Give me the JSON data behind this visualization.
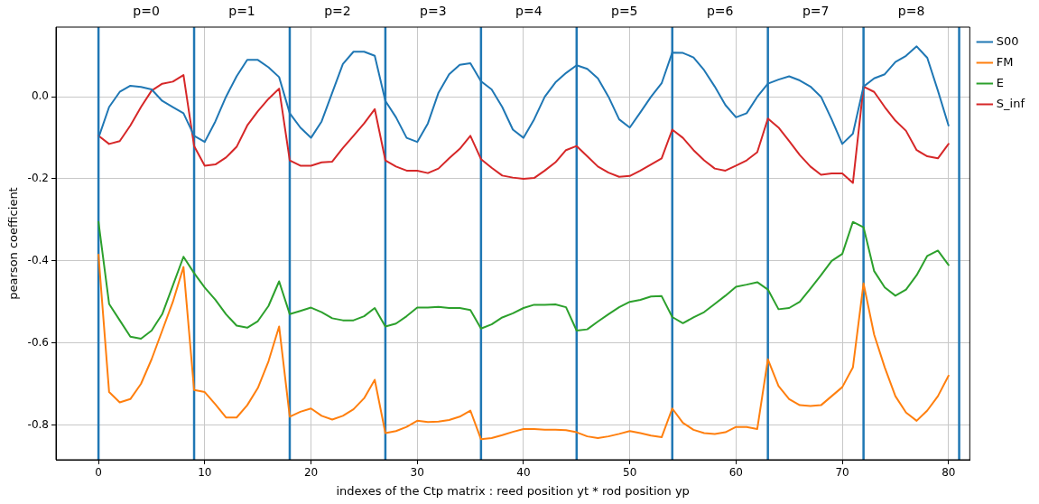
{
  "chart_data": {
    "type": "line",
    "xlabel": "indexes of the Ctp matrix : reed position yt * rod position yp",
    "ylabel": "pearson coefficient",
    "x": [
      0,
      1,
      2,
      3,
      4,
      5,
      6,
      7,
      8,
      9,
      10,
      11,
      12,
      13,
      14,
      15,
      16,
      17,
      18,
      19,
      20,
      21,
      22,
      23,
      24,
      25,
      26,
      27,
      28,
      29,
      30,
      31,
      32,
      33,
      34,
      35,
      36,
      37,
      38,
      39,
      40,
      41,
      42,
      43,
      44,
      45,
      46,
      47,
      48,
      49,
      50,
      51,
      52,
      53,
      54,
      55,
      56,
      57,
      58,
      59,
      60,
      61,
      62,
      63,
      64,
      65,
      66,
      67,
      68,
      69,
      70,
      71,
      72,
      73,
      74,
      75,
      76,
      77,
      78,
      79,
      80
    ],
    "series": [
      {
        "name": "S00",
        "color": "#1f77b4",
        "values": [
          -0.1,
          -0.025,
          0.012,
          0.027,
          0.024,
          0.018,
          -0.01,
          -0.025,
          -0.04,
          -0.095,
          -0.11,
          -0.06,
          0.0,
          0.05,
          0.09,
          0.09,
          0.072,
          0.048,
          -0.04,
          -0.075,
          -0.1,
          -0.06,
          0.01,
          0.08,
          0.11,
          0.11,
          0.1,
          -0.01,
          -0.05,
          -0.1,
          -0.11,
          -0.065,
          0.01,
          0.055,
          0.078,
          0.082,
          0.038,
          0.018,
          -0.025,
          -0.08,
          -0.1,
          -0.055,
          0.0,
          0.035,
          0.058,
          0.077,
          0.068,
          0.045,
          0.0,
          -0.055,
          -0.075,
          -0.038,
          0.0,
          0.033,
          0.108,
          0.107,
          0.096,
          0.065,
          0.025,
          -0.02,
          -0.05,
          -0.04,
          0.0,
          0.032,
          0.042,
          0.05,
          0.04,
          0.025,
          0.0,
          -0.055,
          -0.115,
          -0.09,
          0.025,
          0.045,
          0.055,
          0.085,
          0.1,
          0.123,
          0.095,
          0.015,
          -0.07
        ]
      },
      {
        "name": "FM",
        "color": "#ff7f0e",
        "values": [
          -0.385,
          -0.72,
          -0.745,
          -0.737,
          -0.7,
          -0.64,
          -0.57,
          -0.5,
          -0.415,
          -0.715,
          -0.72,
          -0.75,
          -0.782,
          -0.782,
          -0.752,
          -0.71,
          -0.645,
          -0.56,
          -0.78,
          -0.768,
          -0.76,
          -0.778,
          -0.787,
          -0.778,
          -0.762,
          -0.735,
          -0.69,
          -0.82,
          -0.815,
          -0.805,
          -0.79,
          -0.793,
          -0.792,
          -0.788,
          -0.78,
          -0.765,
          -0.835,
          -0.832,
          -0.825,
          -0.817,
          -0.81,
          -0.81,
          -0.812,
          -0.812,
          -0.813,
          -0.818,
          -0.828,
          -0.832,
          -0.828,
          -0.822,
          -0.815,
          -0.82,
          -0.826,
          -0.83,
          -0.76,
          -0.795,
          -0.812,
          -0.82,
          -0.822,
          -0.818,
          -0.805,
          -0.805,
          -0.81,
          -0.64,
          -0.705,
          -0.737,
          -0.752,
          -0.754,
          -0.752,
          -0.73,
          -0.708,
          -0.66,
          -0.455,
          -0.58,
          -0.66,
          -0.73,
          -0.77,
          -0.79,
          -0.765,
          -0.73,
          -0.68
        ]
      },
      {
        "name": "E",
        "color": "#2ca02c",
        "values": [
          -0.305,
          -0.505,
          -0.545,
          -0.585,
          -0.59,
          -0.57,
          -0.53,
          -0.46,
          -0.39,
          -0.43,
          -0.465,
          -0.495,
          -0.53,
          -0.558,
          -0.563,
          -0.547,
          -0.51,
          -0.45,
          -0.53,
          -0.522,
          -0.514,
          -0.525,
          -0.54,
          -0.545,
          -0.545,
          -0.535,
          -0.515,
          -0.56,
          -0.553,
          -0.535,
          -0.514,
          -0.514,
          -0.512,
          -0.515,
          -0.515,
          -0.52,
          -0.565,
          -0.555,
          -0.538,
          -0.528,
          -0.515,
          -0.507,
          -0.507,
          -0.506,
          -0.513,
          -0.57,
          -0.567,
          -0.548,
          -0.53,
          -0.513,
          -0.5,
          -0.495,
          -0.487,
          -0.486,
          -0.537,
          -0.552,
          -0.538,
          -0.525,
          -0.505,
          -0.485,
          -0.463,
          -0.458,
          -0.452,
          -0.47,
          -0.518,
          -0.515,
          -0.5,
          -0.468,
          -0.435,
          -0.4,
          -0.383,
          -0.305,
          -0.318,
          -0.425,
          -0.465,
          -0.485,
          -0.47,
          -0.435,
          -0.388,
          -0.375,
          -0.41
        ]
      },
      {
        "name": "S_inf",
        "color": "#d62728",
        "values": [
          -0.095,
          -0.115,
          -0.108,
          -0.07,
          -0.025,
          0.015,
          0.032,
          0.037,
          0.053,
          -0.12,
          -0.168,
          -0.165,
          -0.148,
          -0.122,
          -0.07,
          -0.035,
          -0.005,
          0.02,
          -0.155,
          -0.168,
          -0.168,
          -0.16,
          -0.158,
          -0.125,
          -0.095,
          -0.065,
          -0.03,
          -0.155,
          -0.17,
          -0.18,
          -0.18,
          -0.186,
          -0.175,
          -0.15,
          -0.127,
          -0.095,
          -0.152,
          -0.173,
          -0.192,
          -0.197,
          -0.2,
          -0.198,
          -0.18,
          -0.16,
          -0.13,
          -0.12,
          -0.145,
          -0.17,
          -0.185,
          -0.195,
          -0.193,
          -0.18,
          -0.165,
          -0.15,
          -0.08,
          -0.1,
          -0.13,
          -0.155,
          -0.175,
          -0.18,
          -0.168,
          -0.155,
          -0.135,
          -0.053,
          -0.075,
          -0.108,
          -0.142,
          -0.17,
          -0.19,
          -0.187,
          -0.187,
          -0.21,
          0.025,
          0.012,
          -0.025,
          -0.058,
          -0.083,
          -0.13,
          -0.145,
          -0.15,
          -0.115
        ]
      }
    ],
    "xlim": [
      -4,
      82
    ],
    "ylim": [
      -0.885,
      0.17
    ],
    "xticks": [
      0,
      10,
      20,
      30,
      40,
      50,
      60,
      70,
      80
    ],
    "yticks": [
      {
        "value": -0.8,
        "label": "-0.8"
      },
      {
        "value": -0.6,
        "label": "-0.6"
      },
      {
        "value": -0.4,
        "label": "-0.4"
      },
      {
        "value": -0.2,
        "label": "-0.2"
      },
      {
        "value": 0,
        "label": "0.0"
      }
    ],
    "ref_lines": [
      {
        "axis": "x",
        "value": 0,
        "color": "#1f77b4"
      },
      {
        "axis": "x",
        "value": 9,
        "color": "#1f77b4"
      },
      {
        "axis": "x",
        "value": 18,
        "color": "#1f77b4"
      },
      {
        "axis": "x",
        "value": 27,
        "color": "#1f77b4"
      },
      {
        "axis": "x",
        "value": 36,
        "color": "#1f77b4"
      },
      {
        "axis": "x",
        "value": 45,
        "color": "#1f77b4"
      },
      {
        "axis": "x",
        "value": 54,
        "color": "#1f77b4"
      },
      {
        "axis": "x",
        "value": 63,
        "color": "#1f77b4"
      },
      {
        "axis": "x",
        "value": 72,
        "color": "#1f77b4"
      },
      {
        "axis": "x",
        "value": 81,
        "color": "#1f77b4"
      }
    ],
    "annotations": [
      "p=0",
      "p=1",
      "p=2",
      "p=3",
      "p=4",
      "p=5",
      "p=6",
      "p=7",
      "p=8"
    ],
    "grid": true,
    "legend": "top right",
    "marker": "none",
    "line_style": "solid"
  }
}
